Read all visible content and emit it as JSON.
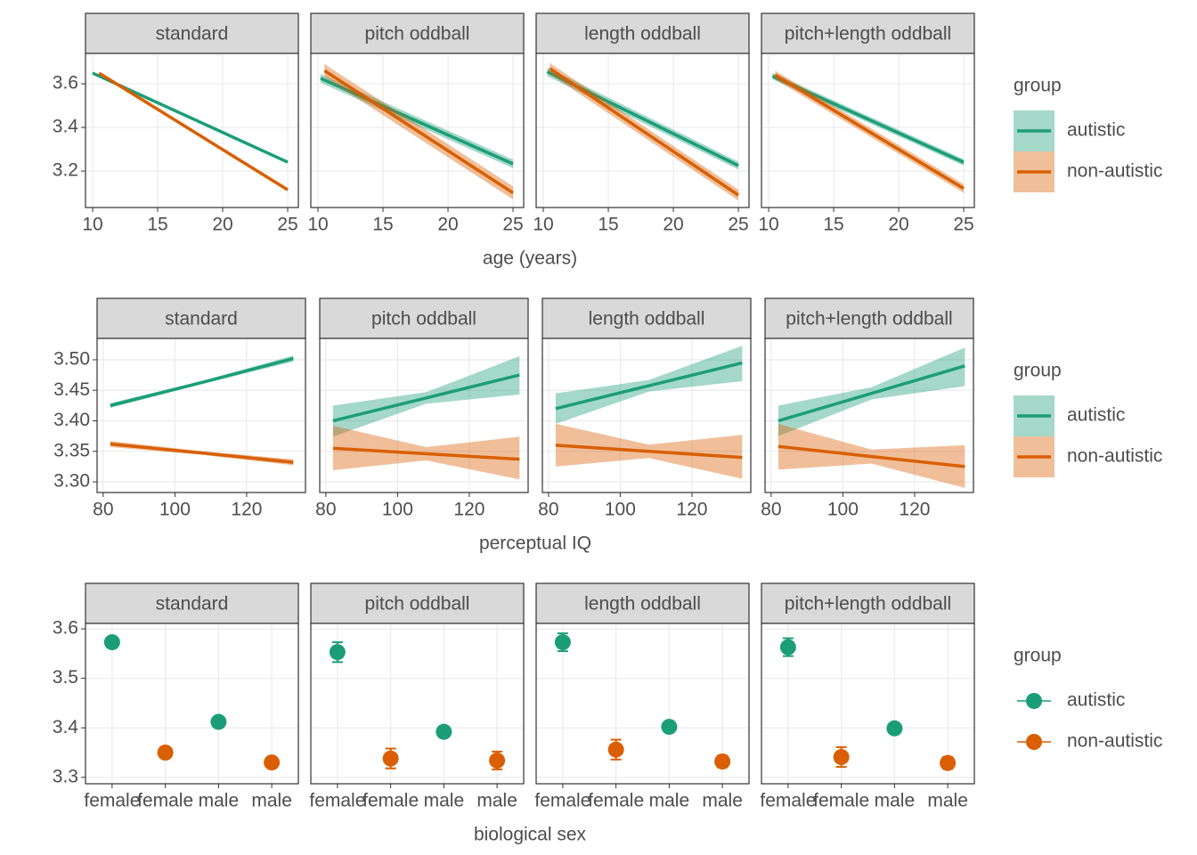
{
  "chart_data": [
    {
      "type": "line",
      "xlabel": "age (years)",
      "legend_title": "group",
      "xlim": [
        9.45,
        25.82
      ],
      "xticks": [
        10,
        15,
        20,
        25
      ],
      "ylim": [
        3.033,
        3.739
      ],
      "yticks": [
        3.2,
        3.4,
        3.6
      ],
      "grid": true,
      "series": [
        {
          "name": "autistic",
          "color": "#1b9e77"
        },
        {
          "name": "non-autistic",
          "color": "#d95f02"
        }
      ],
      "panels": [
        {
          "title": "standard",
          "series": [
            {
              "x": [
                10,
                25
              ],
              "values": [
                3.649,
                3.241
              ],
              "lower": [
                3.644,
                3.235
              ],
              "upper": [
                3.654,
                3.247
              ]
            },
            {
              "x": [
                10.5,
                25
              ],
              "values": [
                3.649,
                3.114
              ],
              "lower": [
                3.643,
                3.108
              ],
              "upper": [
                3.655,
                3.12
              ]
            }
          ]
        },
        {
          "title": "pitch oddball",
          "series": [
            {
              "x": [
                10.2,
                25
              ],
              "values": [
                3.625,
                3.233
              ],
              "lower": [
                3.605,
                3.213
              ],
              "upper": [
                3.645,
                3.253
              ]
            },
            {
              "x": [
                10.5,
                25
              ],
              "values": [
                3.66,
                3.1
              ],
              "lower": [
                3.63,
                3.07
              ],
              "upper": [
                3.69,
                3.13
              ]
            }
          ]
        },
        {
          "title": "length oddball",
          "series": [
            {
              "x": [
                10.3,
                25
              ],
              "values": [
                3.655,
                3.225
              ],
              "lower": [
                3.635,
                3.207
              ],
              "upper": [
                3.675,
                3.243
              ]
            },
            {
              "x": [
                10.5,
                25
              ],
              "values": [
                3.67,
                3.09
              ],
              "lower": [
                3.645,
                3.065
              ],
              "upper": [
                3.695,
                3.115
              ]
            }
          ]
        },
        {
          "title": "pitch+length oddball",
          "series": [
            {
              "x": [
                10.3,
                25
              ],
              "values": [
                3.635,
                3.24
              ],
              "lower": [
                3.62,
                3.225
              ],
              "upper": [
                3.65,
                3.255
              ]
            },
            {
              "x": [
                10.5,
                25
              ],
              "values": [
                3.64,
                3.12
              ],
              "lower": [
                3.62,
                3.1
              ],
              "upper": [
                3.66,
                3.14
              ]
            }
          ]
        }
      ]
    },
    {
      "type": "line",
      "xlabel": "perceptual IQ",
      "legend_title": "group",
      "xlim": [
        78.3,
        136.4
      ],
      "xticks": [
        80,
        100,
        120
      ],
      "ylim": [
        3.2825,
        3.535
      ],
      "yticks": [
        {
          "value": 3.3,
          "label": "3.30"
        },
        3.35,
        {
          "value": 3.4,
          "label": "3.40"
        },
        3.45,
        {
          "value": 3.5,
          "label": "3.50"
        }
      ],
      "grid": true,
      "series": [
        {
          "name": "autistic",
          "color": "#1b9e77"
        },
        {
          "name": "non-autistic",
          "color": "#d95f02"
        }
      ],
      "panels": [
        {
          "title": "standard",
          "series": [
            {
              "x": [
                82,
                108,
                133
              ],
              "values": [
                3.425,
                3.4635,
                3.502
              ],
              "lower": [
                3.421,
                3.461,
                3.497
              ],
              "upper": [
                3.429,
                3.466,
                3.507
              ]
            },
            {
              "x": [
                82,
                108,
                133
              ],
              "values": [
                3.362,
                3.347,
                3.332
              ],
              "lower": [
                3.357,
                3.344,
                3.327
              ],
              "upper": [
                3.367,
                3.35,
                3.337
              ]
            }
          ]
        },
        {
          "title": "pitch oddball",
          "series": [
            {
              "x": [
                82,
                108,
                134
              ],
              "values": [
                3.4,
                3.4375,
                3.475
              ],
              "lower": [
                3.374,
                3.428,
                3.443
              ],
              "upper": [
                3.425,
                3.447,
                3.506
              ]
            },
            {
              "x": [
                82,
                108,
                134
              ],
              "values": [
                3.355,
                3.346,
                3.337
              ],
              "lower": [
                3.319,
                3.335,
                3.304
              ],
              "upper": [
                3.392,
                3.357,
                3.374
              ]
            }
          ]
        },
        {
          "title": "length oddball",
          "series": [
            {
              "x": [
                82,
                108,
                134
              ],
              "values": [
                3.42,
                3.4575,
                3.495
              ],
              "lower": [
                3.395,
                3.448,
                3.465
              ],
              "upper": [
                3.445,
                3.467,
                3.523
              ]
            },
            {
              "x": [
                82,
                108,
                134
              ],
              "values": [
                3.36,
                3.35,
                3.34
              ],
              "lower": [
                3.325,
                3.339,
                3.305
              ],
              "upper": [
                3.395,
                3.361,
                3.377
              ]
            }
          ]
        },
        {
          "title": "pitch+length oddball",
          "series": [
            {
              "x": [
                82,
                108,
                134
              ],
              "values": [
                3.4,
                3.445,
                3.49
              ],
              "lower": [
                3.375,
                3.435,
                3.457
              ],
              "upper": [
                3.425,
                3.455,
                3.52
              ]
            },
            {
              "x": [
                82,
                108,
                134
              ],
              "values": [
                3.358,
                3.3415,
                3.325
              ],
              "lower": [
                3.32,
                3.33,
                3.29
              ],
              "upper": [
                3.395,
                3.353,
                3.36
              ]
            }
          ]
        }
      ]
    },
    {
      "type": "point",
      "xlabel": "biological sex",
      "legend_title": "group",
      "categories": [
        "female",
        "female",
        "male",
        "male"
      ],
      "ylim": [
        3.287,
        3.611
      ],
      "yticks": [
        3.3,
        3.4,
        3.5,
        3.6
      ],
      "grid": true,
      "series": [
        {
          "name": "autistic",
          "color": "#1b9e77"
        },
        {
          "name": "non-autistic",
          "color": "#d95f02"
        }
      ],
      "panels": [
        {
          "title": "standard",
          "series": [
            {
              "values": [
                3.573,
                null,
                3.412,
                null
              ],
              "errors": [
                0.004,
                null,
                0.004,
                null
              ]
            },
            {
              "values": [
                null,
                3.35,
                null,
                3.33
              ],
              "errors": [
                null,
                0.004,
                null,
                0.004
              ]
            }
          ]
        },
        {
          "title": "pitch oddball",
          "series": [
            {
              "values": [
                3.553,
                null,
                3.392,
                null
              ],
              "errors": [
                0.02,
                null,
                0.006,
                null
              ]
            },
            {
              "values": [
                null,
                3.338,
                null,
                3.334
              ],
              "errors": [
                null,
                0.02,
                null,
                0.018
              ]
            }
          ]
        },
        {
          "title": "length oddball",
          "series": [
            {
              "values": [
                3.573,
                null,
                3.402,
                null
              ],
              "errors": [
                0.018,
                null,
                0.005,
                null
              ]
            },
            {
              "values": [
                null,
                3.356,
                null,
                3.332
              ],
              "errors": [
                null,
                0.02,
                null,
                0.012
              ]
            }
          ]
        },
        {
          "title": "pitch+length oddball",
          "series": [
            {
              "values": [
                3.563,
                null,
                3.399,
                null
              ],
              "errors": [
                0.018,
                null,
                0.005,
                null
              ]
            },
            {
              "values": [
                null,
                3.341,
                null,
                3.329
              ],
              "errors": [
                null,
                0.02,
                null,
                0.012
              ]
            }
          ]
        }
      ]
    }
  ]
}
